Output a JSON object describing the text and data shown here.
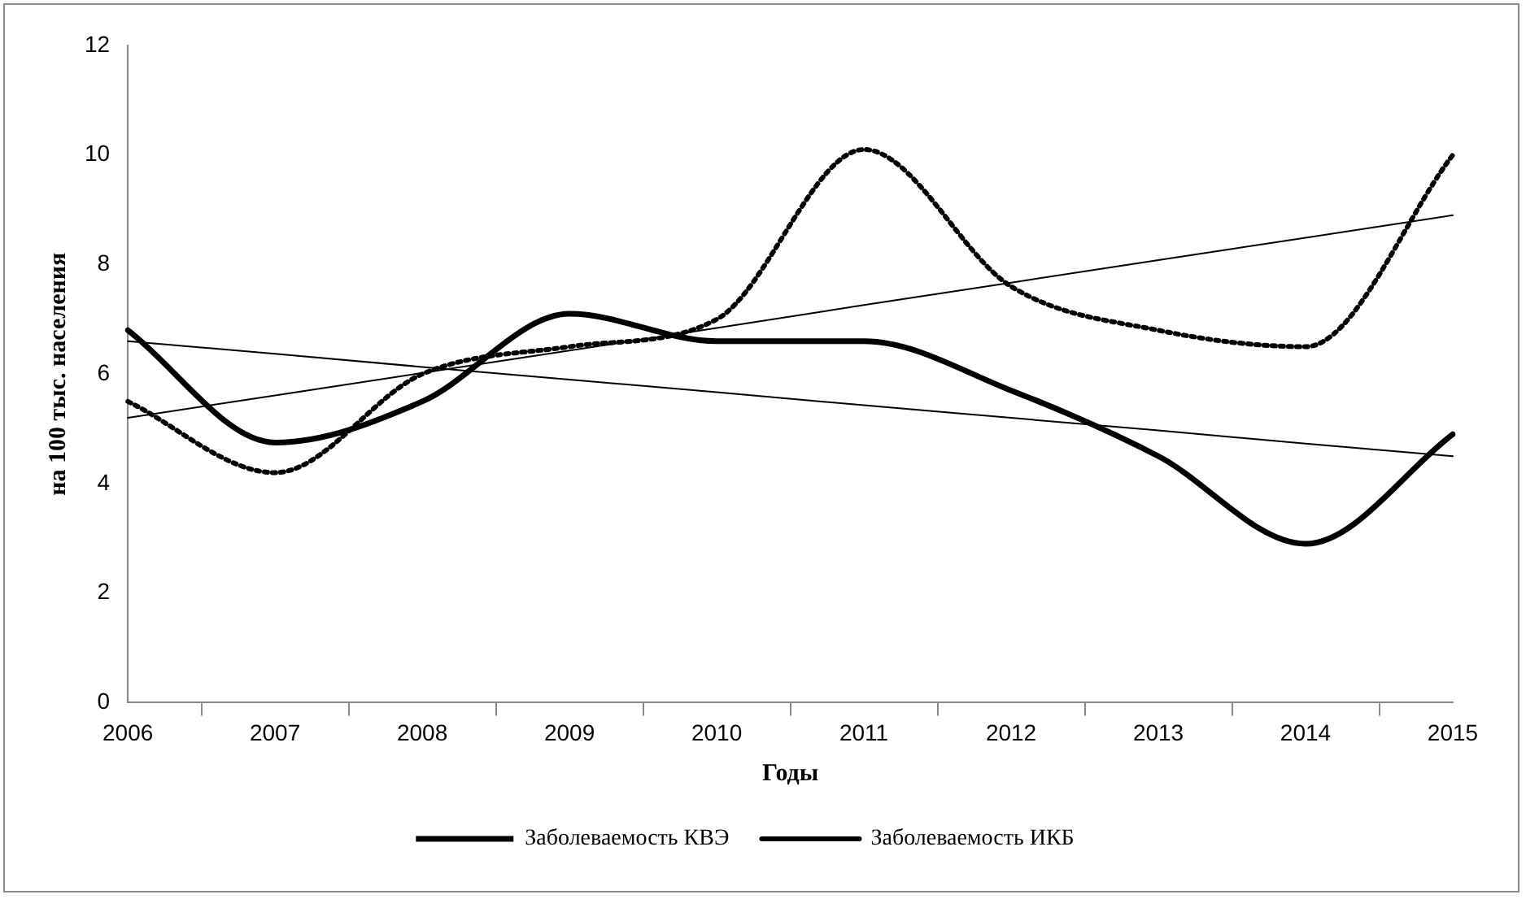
{
  "chart_data": {
    "type": "line",
    "xlabel": "Годы",
    "ylabel": "на 100 тыс. населения",
    "categories": [
      "2006",
      "2007",
      "2008",
      "2009",
      "2010",
      "2011",
      "2012",
      "2013",
      "2014",
      "2015"
    ],
    "series": [
      {
        "name": "Заболеваемость КВЭ",
        "color": "#000000",
        "line_style": "solid",
        "values": [
          6.8,
          4.75,
          5.5,
          7.1,
          6.6,
          6.6,
          5.7,
          4.5,
          2.9,
          4.9
        ]
      },
      {
        "name": "Заболеваемость ИКБ",
        "color": "#000000",
        "line_style": "dotted",
        "values": [
          5.5,
          4.2,
          6.0,
          6.5,
          7.0,
          10.1,
          7.6,
          6.8,
          6.5,
          10.0
        ]
      },
      {
        "type": "line",
        "color": "#000000",
        "line_style": "solid",
        "values": [
          6.6,
          6.37,
          6.13,
          5.9,
          5.67,
          5.43,
          5.2,
          4.97,
          4.73,
          4.5
        ]
      },
      {
        "type": "line",
        "color": "#000000",
        "line_style": "solid",
        "values": [
          5.2,
          5.61,
          6.02,
          6.43,
          6.84,
          7.26,
          7.67,
          8.08,
          8.49,
          8.9
        ]
      }
    ],
    "ylim": [
      0,
      12
    ],
    "yticks": [
      0,
      2,
      4,
      6,
      8,
      10,
      12
    ],
    "grid": false,
    "legend": "bottom",
    "marker": "none"
  }
}
